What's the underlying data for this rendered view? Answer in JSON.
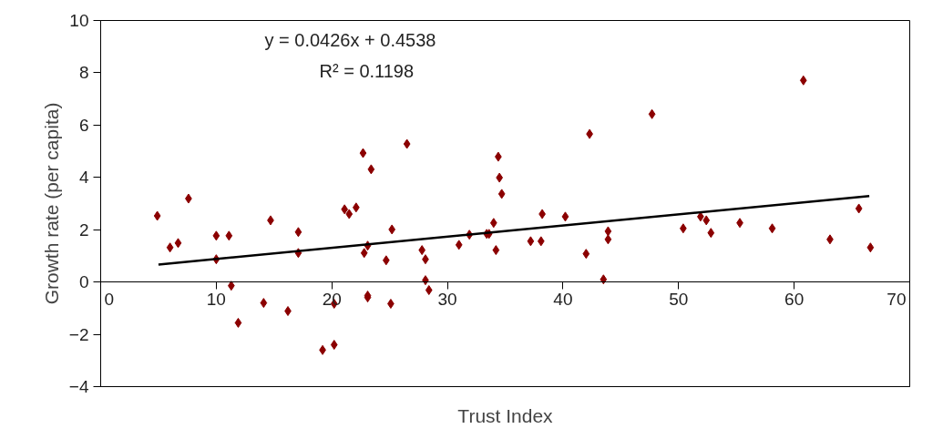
{
  "chart_data": {
    "type": "scatter",
    "xlabel": "Trust Index",
    "ylabel": "Growth rate (per capita)",
    "annotations": [
      "y = 0.0426x + 0.4538",
      "R² = 0.1198"
    ],
    "xlim": [
      0,
      70
    ],
    "xticks": [
      0,
      10,
      20,
      30,
      40,
      50,
      60,
      70
    ],
    "ylim": [
      -4,
      10
    ],
    "yticks": [
      -4,
      -2,
      0,
      2,
      4,
      6,
      8,
      10
    ],
    "grid": false,
    "marker": "diamond",
    "series": [
      {
        "color": "#8b0000",
        "x": [
          4.9,
          6.0,
          6.7,
          7.6,
          10.0,
          10.0,
          11.1,
          11.3,
          11.9,
          14.1,
          14.7,
          16.2,
          17.1,
          17.1,
          19.2,
          20.2,
          20.2,
          21.1,
          21.5,
          22.1,
          22.7,
          23.4,
          22.8,
          23.1,
          23.1,
          23.1,
          24.7,
          25.1,
          25.2,
          26.5,
          27.8,
          28.1,
          28.1,
          28.4,
          31.0,
          31.9,
          33.4,
          33.6,
          34.0,
          34.2,
          34.4,
          34.5,
          34.7,
          37.2,
          38.1,
          38.2,
          40.2,
          42.0,
          42.3,
          43.5,
          43.9,
          43.9,
          47.7,
          50.4,
          51.9,
          52.4,
          52.8,
          55.3,
          58.1,
          60.8,
          63.1,
          65.6,
          66.6
        ],
        "values": [
          2.53,
          1.32,
          1.49,
          3.19,
          1.77,
          0.87,
          1.77,
          -0.14,
          -1.56,
          -0.8,
          2.36,
          -1.11,
          1.91,
          1.11,
          -2.6,
          -2.4,
          -0.83,
          2.78,
          2.6,
          2.85,
          4.93,
          4.31,
          1.11,
          1.39,
          -0.52,
          -0.59,
          0.83,
          -0.83,
          2.01,
          5.28,
          1.22,
          0.87,
          0.07,
          -0.31,
          1.42,
          1.81,
          1.84,
          1.84,
          2.26,
          1.22,
          4.79,
          3.99,
          3.37,
          1.56,
          1.56,
          2.6,
          2.5,
          1.08,
          5.66,
          0.1,
          1.94,
          1.63,
          6.42,
          2.05,
          2.5,
          2.36,
          1.88,
          2.26,
          2.05,
          7.71,
          1.63,
          2.81,
          1.32
        ]
      },
      {
        "type": "line",
        "color": "#000000",
        "line_style": "solid",
        "marker": "none",
        "x": [
          5,
          66.5
        ],
        "values": [
          0.67,
          3.29
        ]
      }
    ]
  }
}
